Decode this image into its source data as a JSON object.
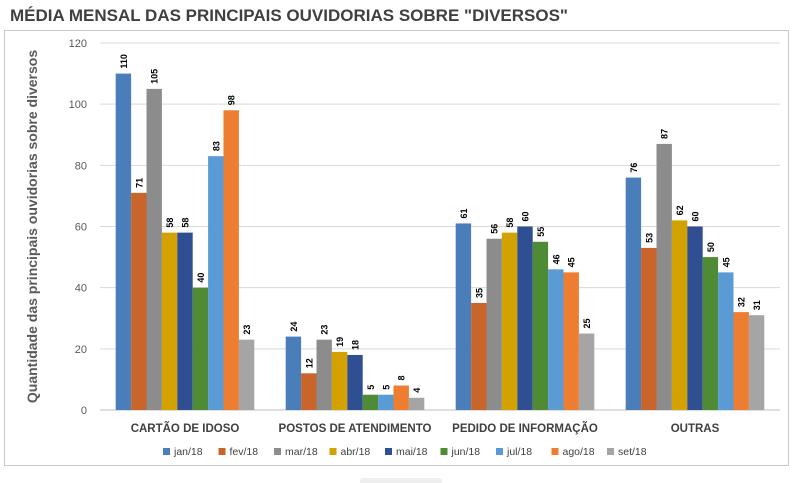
{
  "chart_data": {
    "type": "bar",
    "title": "MÉDIA MENSAL DAS PRINCIPAIS OUVIDORIAS SOBRE \"DIVERSOS\"",
    "ylabel": "Quantidade das principais ouvidorias sobre diversos",
    "xlabel": "",
    "ylim": [
      0,
      120
    ],
    "yticks": [
      0,
      20,
      40,
      60,
      80,
      100,
      120
    ],
    "grid": true,
    "legend_position": "bottom",
    "categories": [
      "CARTÃO DE IDOSO",
      "POSTOS DE ATENDIMENTO",
      "PEDIDO DE INFORMAÇÃO",
      "OUTRAS"
    ],
    "series": [
      {
        "name": "jan/18",
        "color": "#4a7ebb",
        "values": [
          110,
          24,
          61,
          76
        ]
      },
      {
        "name": "fev/18",
        "color": "#c9652a",
        "values": [
          71,
          12,
          35,
          53
        ]
      },
      {
        "name": "mar/18",
        "color": "#8c8c8c",
        "values": [
          105,
          23,
          56,
          87
        ]
      },
      {
        "name": "abr/18",
        "color": "#d4a200",
        "values": [
          58,
          19,
          58,
          62
        ]
      },
      {
        "name": "mai/18",
        "color": "#2f4f92",
        "values": [
          58,
          18,
          60,
          60
        ]
      },
      {
        "name": "jun/18",
        "color": "#4f8b35",
        "values": [
          40,
          5,
          55,
          50
        ]
      },
      {
        "name": "jul/18",
        "color": "#5b9bd5",
        "values": [
          83,
          5,
          46,
          45
        ]
      },
      {
        "name": "ago/18",
        "color": "#ed7d31",
        "values": [
          98,
          8,
          45,
          32
        ]
      },
      {
        "name": "set/18",
        "color": "#a5a5a5",
        "values": [
          23,
          4,
          25,
          31
        ]
      }
    ]
  }
}
